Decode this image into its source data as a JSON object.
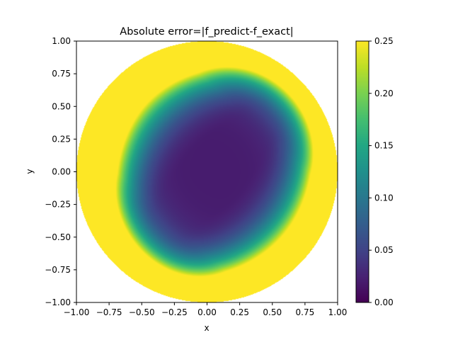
{
  "chart_data": {
    "type": "heatmap",
    "title": "Absolute error=|f_predict-f_exact|",
    "xlabel": "x",
    "ylabel": "y",
    "xlim": [
      -1.0,
      1.0
    ],
    "ylim": [
      -1.0,
      1.0
    ],
    "x_ticks": [
      "−1.00",
      "−0.75",
      "−0.50",
      "−0.25",
      "0.00",
      "0.25",
      "0.50",
      "0.75",
      "1.00"
    ],
    "y_ticks": [
      "−1.00",
      "−0.75",
      "−0.50",
      "−0.25",
      "0.00",
      "0.25",
      "0.50",
      "0.75",
      "1.00"
    ],
    "x_tick_values": [
      -1.0,
      -0.75,
      -0.5,
      -0.25,
      0.0,
      0.25,
      0.5,
      0.75,
      1.0
    ],
    "y_tick_values": [
      -1.0,
      -0.75,
      -0.5,
      -0.25,
      0.0,
      0.25,
      0.5,
      0.75,
      1.0
    ],
    "domain": "unit disk (x^2 + y^2 <= 1)",
    "colormap": "viridis",
    "color_range": [
      0.0,
      0.25
    ],
    "colorbar_ticks": [
      "0.00",
      "0.05",
      "0.10",
      "0.15",
      "0.20",
      "0.25"
    ],
    "colorbar_tick_values": [
      0.0,
      0.05,
      0.1,
      0.15,
      0.2,
      0.25
    ],
    "minimum_region": {
      "approx_center": [
        0.2,
        0.0
      ],
      "orientation": "elongated along the diagonal from lower-left (-0.25,-0.4) to upper-right (0.4,0.4)",
      "value": 0.0
    },
    "maximum_region": {
      "location": "disk boundary, widest on the left side",
      "value": 0.25
    },
    "grid": false
  }
}
